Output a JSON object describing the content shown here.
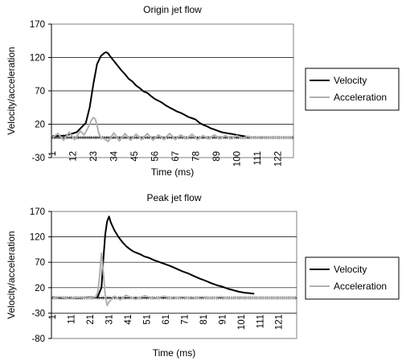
{
  "chart_data": [
    {
      "type": "line",
      "title": "Origin jet flow",
      "xlabel": "Time (ms)",
      "ylabel": "Velocity/acceleration",
      "ylim": [
        -30,
        170
      ],
      "yticks": [
        -30,
        20,
        70,
        120,
        170
      ],
      "x_category_count": 130,
      "xtick_labels": [
        "1",
        "12",
        "23",
        "34",
        "45",
        "56",
        "67",
        "78",
        "89",
        "100",
        "111",
        "122"
      ],
      "grid": true,
      "legend_position": "right",
      "series": [
        {
          "name": "Velocity",
          "color": "#000000",
          "x": [
            1,
            8,
            14,
            19,
            21,
            23,
            25,
            27,
            29,
            30,
            31,
            32,
            34,
            36,
            38,
            40,
            42,
            44,
            46,
            48,
            50,
            52,
            54,
            56,
            58,
            60,
            62,
            64,
            66,
            68,
            70,
            72,
            74,
            76,
            78,
            80,
            82,
            84,
            86,
            88,
            90,
            92,
            94,
            96,
            98,
            100,
            102,
            104,
            106
          ],
          "values": [
            2,
            3,
            8,
            22,
            45,
            80,
            110,
            122,
            127,
            128,
            126,
            122,
            115,
            108,
            101,
            95,
            88,
            84,
            78,
            74,
            69,
            67,
            62,
            58,
            55,
            52,
            48,
            45,
            42,
            39,
            37,
            34,
            31,
            29,
            27,
            22,
            19,
            17,
            14,
            12,
            10,
            8,
            7,
            6,
            5,
            4,
            3,
            2,
            1
          ]
        },
        {
          "name": "Acceleration",
          "color": "#b0b0b0",
          "x": [
            1,
            4,
            7,
            10,
            13,
            16,
            18,
            20,
            22,
            23,
            24,
            25,
            26,
            27,
            29,
            31,
            34,
            37,
            40,
            43,
            46,
            49,
            52,
            55,
            58,
            61,
            64,
            67,
            70,
            73,
            76,
            79,
            82,
            85,
            88,
            91,
            94,
            97,
            100,
            103,
            106,
            109,
            113,
            118,
            123,
            130
          ],
          "values": [
            0,
            6,
            -4,
            8,
            -3,
            10,
            4,
            14,
            26,
            30,
            28,
            18,
            6,
            0,
            -2,
            -6,
            7,
            -5,
            6,
            -4,
            5,
            -3,
            6,
            -4,
            4,
            -3,
            6,
            -3,
            4,
            -2,
            5,
            -3,
            3,
            -2,
            4,
            -2,
            3,
            -2,
            3,
            -1,
            2,
            -1,
            1,
            0,
            0,
            0
          ]
        }
      ]
    },
    {
      "type": "line",
      "title": "Peak jet flow",
      "xlabel": "Time (ms)",
      "ylabel": "Velocity/acceleration",
      "ylim": [
        -80,
        170
      ],
      "yticks": [
        -80,
        -30,
        20,
        70,
        120,
        170
      ],
      "x_category_count": 130,
      "xtick_labels": [
        "1",
        "11",
        "21",
        "31",
        "41",
        "51",
        "61",
        "71",
        "81",
        "91",
        "101",
        "111",
        "121"
      ],
      "grid": true,
      "legend_position": "right",
      "series": [
        {
          "name": "Velocity",
          "color": "#000000",
          "x": [
            1,
            6,
            11,
            16,
            21,
            25,
            27,
            28,
            29,
            30,
            31,
            32,
            34,
            36,
            38,
            40,
            42,
            44,
            46,
            48,
            50,
            52,
            55,
            58,
            61,
            64,
            67,
            70,
            73,
            76,
            79,
            82,
            85,
            88,
            91,
            94,
            97,
            100,
            103,
            106,
            108
          ],
          "values": [
            1,
            0,
            -1,
            0,
            1,
            2,
            20,
            75,
            125,
            150,
            160,
            148,
            132,
            120,
            110,
            102,
            96,
            91,
            88,
            85,
            81,
            79,
            74,
            70,
            66,
            62,
            57,
            52,
            48,
            43,
            38,
            34,
            29,
            25,
            22,
            18,
            15,
            12,
            10,
            9,
            8
          ]
        },
        {
          "name": "Acceleration",
          "color": "#b0b0b0",
          "x": [
            1,
            5,
            10,
            15,
            20,
            24,
            25,
            26,
            27,
            28,
            29,
            30,
            31,
            32,
            34,
            37,
            40,
            45,
            50,
            55,
            60,
            65,
            70,
            75,
            80,
            85,
            90,
            95,
            100,
            105,
            110,
            118,
            126,
            130
          ],
          "values": [
            0,
            2,
            -2,
            1,
            0,
            2,
            10,
            40,
            88,
            50,
            5,
            -15,
            -8,
            -4,
            3,
            -4,
            5,
            -3,
            4,
            -2,
            3,
            -2,
            2,
            -2,
            2,
            -1,
            2,
            -1,
            1,
            0,
            0,
            0,
            0,
            0
          ]
        }
      ]
    }
  ]
}
